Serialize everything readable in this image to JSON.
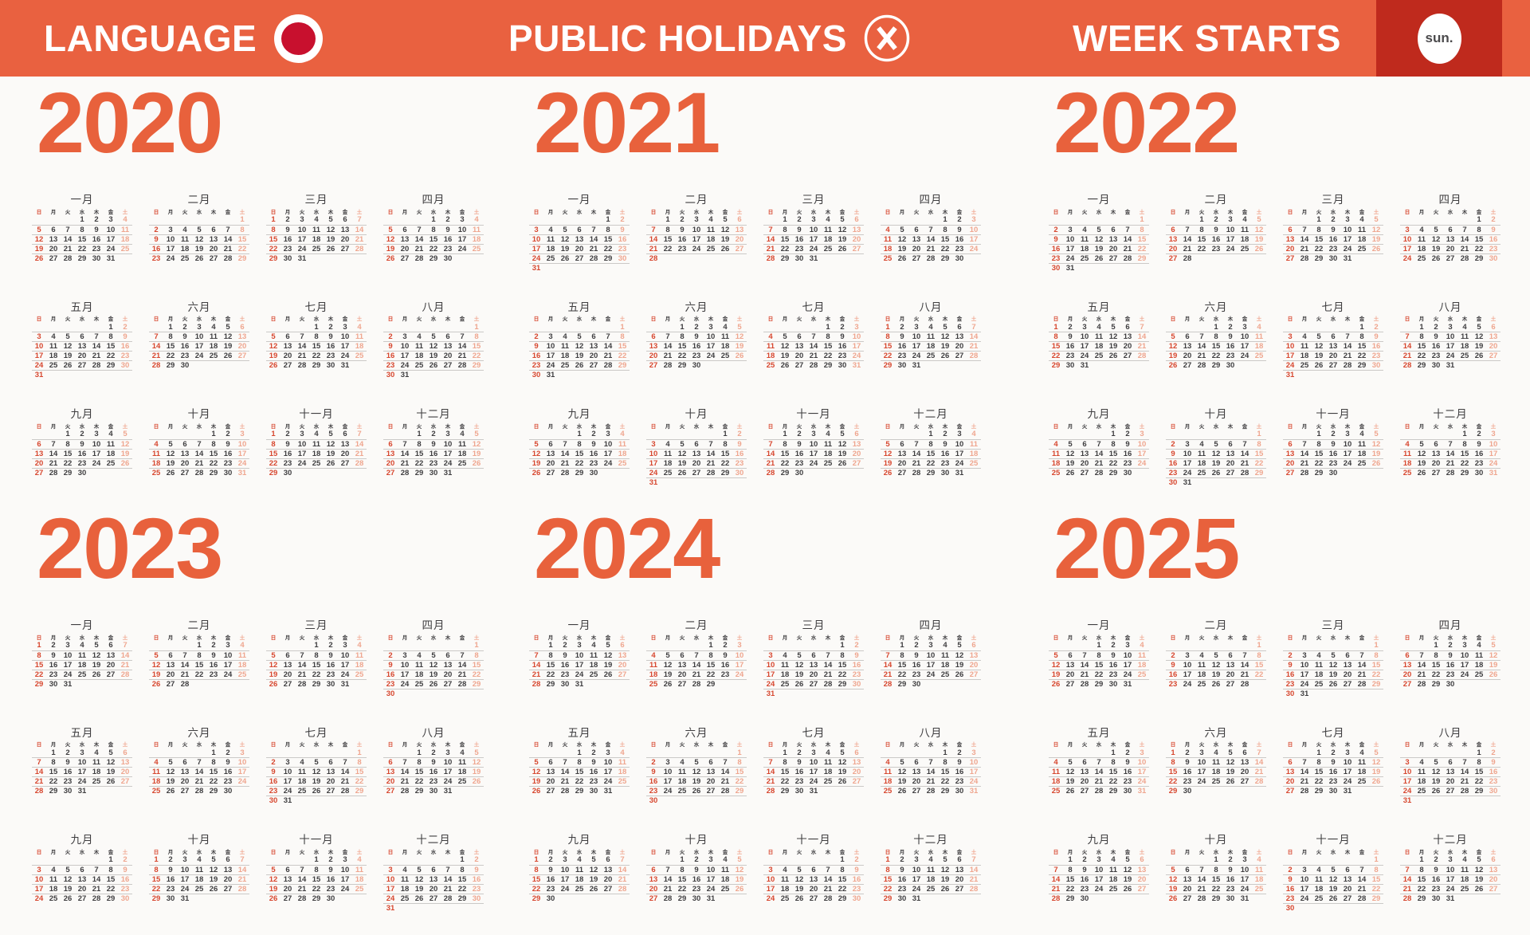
{
  "header": {
    "language": {
      "label": "LANGUAGE",
      "icon": "japan-flag-icon"
    },
    "public_holidays": {
      "label": "PUBLIC HOLIDAYS",
      "icon": "crossed-circle-icon"
    },
    "week_starts": {
      "label": "WEEK STARTS",
      "value": "sun."
    }
  },
  "weekday_labels": [
    "日",
    "月",
    "火",
    "水",
    "木",
    "金",
    "土"
  ],
  "month_labels": [
    "一月",
    "二月",
    "三月",
    "四月",
    "五月",
    "六月",
    "七月",
    "八月",
    "九月",
    "十月",
    "十一月",
    "十二月"
  ],
  "years": [
    {
      "label": "2020",
      "first_weekdays": [
        3,
        6,
        0,
        3,
        5,
        1,
        3,
        6,
        2,
        4,
        0,
        2
      ],
      "days_in_month": [
        31,
        29,
        31,
        30,
        31,
        30,
        31,
        31,
        30,
        31,
        30,
        31
      ]
    },
    {
      "label": "2021",
      "first_weekdays": [
        5,
        1,
        1,
        4,
        6,
        2,
        4,
        0,
        3,
        5,
        1,
        3
      ],
      "days_in_month": [
        31,
        28,
        31,
        30,
        31,
        30,
        31,
        31,
        30,
        31,
        30,
        31
      ]
    },
    {
      "label": "2022",
      "first_weekdays": [
        6,
        2,
        2,
        5,
        0,
        3,
        5,
        1,
        4,
        6,
        2,
        4
      ],
      "days_in_month": [
        31,
        28,
        31,
        30,
        31,
        30,
        31,
        31,
        30,
        31,
        30,
        31
      ]
    },
    {
      "label": "2023",
      "first_weekdays": [
        0,
        3,
        3,
        6,
        1,
        4,
        6,
        2,
        5,
        0,
        3,
        5
      ],
      "days_in_month": [
        31,
        28,
        31,
        30,
        31,
        30,
        31,
        31,
        30,
        31,
        30,
        31
      ]
    },
    {
      "label": "2024",
      "first_weekdays": [
        1,
        4,
        5,
        1,
        3,
        6,
        1,
        4,
        0,
        2,
        5,
        0
      ],
      "days_in_month": [
        31,
        29,
        31,
        30,
        31,
        30,
        31,
        31,
        30,
        31,
        30,
        31
      ]
    },
    {
      "label": "2025",
      "first_weekdays": [
        3,
        6,
        6,
        2,
        4,
        0,
        2,
        5,
        1,
        3,
        6,
        1
      ],
      "days_in_month": [
        31,
        28,
        31,
        30,
        31,
        30,
        31,
        31,
        30,
        31,
        30,
        31
      ]
    }
  ],
  "colors": {
    "bar-bg": "#E96140",
    "accent": "#E8613C",
    "week-start-bg": "#BF2A1D",
    "flag-red": "#C8102E",
    "sunday": "#D7472F",
    "saturday": "#EFA68F",
    "text-dark": "#3F3E40",
    "grid-line": "#CBC9C7",
    "page-bg": "#FBFAF8"
  }
}
